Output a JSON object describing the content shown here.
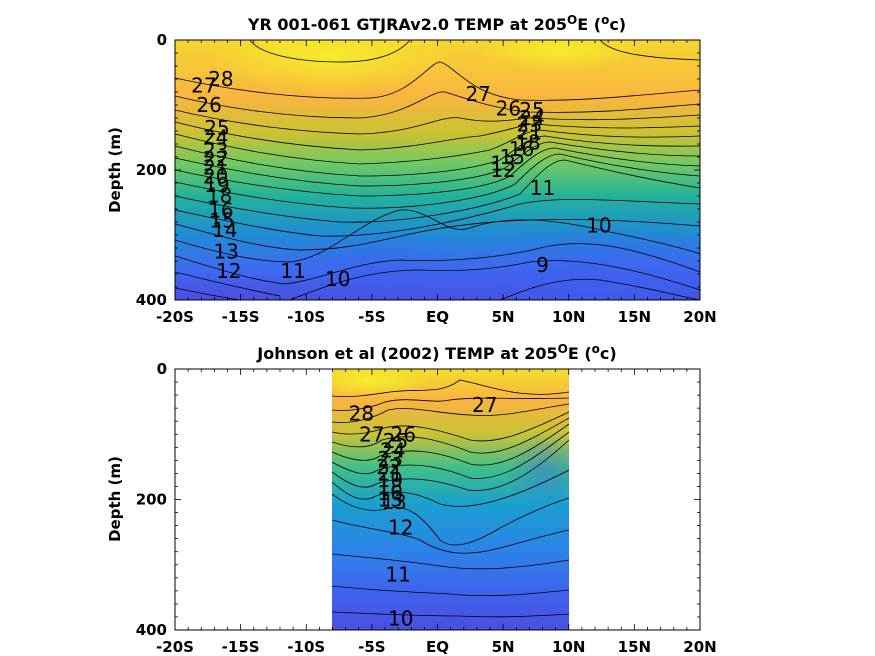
{
  "chart_data": [
    {
      "type": "contour",
      "title_main": "YR 001-061 GTJRAv2.0 TEMP at 205",
      "title_sup": "O",
      "title_end": "E (",
      "title_unit_sup": "o",
      "title_unit": "c)",
      "ylabel": "Depth (m)",
      "xlim": [
        -20,
        20
      ],
      "ylim": [
        0,
        400
      ],
      "y_reversed": true,
      "x_ticks": [
        "-20S",
        "-15S",
        "-10S",
        "-5S",
        "EQ",
        "5N",
        "10N",
        "15N",
        "20N"
      ],
      "y_ticks": [
        "0",
        "200",
        "400"
      ],
      "data_lon_range": [
        -20,
        20
      ],
      "contour_labels": [
        {
          "text": "28",
          "lon": -16.5,
          "depth": 60
        },
        {
          "text": "27",
          "lon": -17.8,
          "depth": 70
        },
        {
          "text": "26",
          "lon": -17.4,
          "depth": 100
        },
        {
          "text": "25",
          "lon": -16.8,
          "depth": 135
        },
        {
          "text": "24",
          "lon": -16.9,
          "depth": 150
        },
        {
          "text": "23",
          "lon": -16.9,
          "depth": 170
        },
        {
          "text": "22",
          "lon": -16.9,
          "depth": 183
        },
        {
          "text": "21",
          "lon": -16.9,
          "depth": 196
        },
        {
          "text": "20",
          "lon": -16.9,
          "depth": 210
        },
        {
          "text": "19",
          "lon": -16.8,
          "depth": 223
        },
        {
          "text": "18",
          "lon": -16.6,
          "depth": 239
        },
        {
          "text": "16",
          "lon": -16.5,
          "depth": 262
        },
        {
          "text": "15",
          "lon": -16.4,
          "depth": 278
        },
        {
          "text": "14",
          "lon": -16.2,
          "depth": 292
        },
        {
          "text": "13",
          "lon": -16.1,
          "depth": 325
        },
        {
          "text": "12",
          "lon": -15.9,
          "depth": 355
        },
        {
          "text": "11",
          "lon": -11.0,
          "depth": 355
        },
        {
          "text": "10",
          "lon": -7.6,
          "depth": 368
        },
        {
          "text": "27",
          "lon": 3.1,
          "depth": 83
        },
        {
          "text": "26",
          "lon": 5.4,
          "depth": 105
        },
        {
          "text": "25",
          "lon": 7.2,
          "depth": 108
        },
        {
          "text": "24",
          "lon": 7.2,
          "depth": 120
        },
        {
          "text": "23",
          "lon": 7.0,
          "depth": 130
        },
        {
          "text": "21",
          "lon": 7.0,
          "depth": 142
        },
        {
          "text": "18",
          "lon": 6.9,
          "depth": 158
        },
        {
          "text": "16",
          "lon": 6.4,
          "depth": 168
        },
        {
          "text": "15",
          "lon": 5.7,
          "depth": 180
        },
        {
          "text": "13",
          "lon": 5.0,
          "depth": 190
        },
        {
          "text": "12",
          "lon": 5.0,
          "depth": 200
        },
        {
          "text": "11",
          "lon": 8.0,
          "depth": 228
        },
        {
          "text": "10",
          "lon": 12.3,
          "depth": 285
        },
        {
          "text": "9",
          "lon": 8.0,
          "depth": 346
        }
      ]
    },
    {
      "type": "contour",
      "title_main": "Johnson et al (2002) TEMP at 205",
      "title_sup": "O",
      "title_end": "E (",
      "title_unit_sup": "o",
      "title_unit": "c)",
      "ylabel": "Depth (m)",
      "xlim": [
        -20,
        20
      ],
      "ylim": [
        0,
        400
      ],
      "y_reversed": true,
      "x_ticks": [
        "-20S",
        "-15S",
        "-10S",
        "-5S",
        "EQ",
        "5N",
        "10N",
        "15N",
        "20N"
      ],
      "y_ticks": [
        "0",
        "200",
        "400"
      ],
      "data_lon_range": [
        -8,
        10
      ],
      "contour_labels": [
        {
          "text": "28",
          "lon": -5.8,
          "depth": 68
        },
        {
          "text": "27",
          "lon": -5.0,
          "depth": 100
        },
        {
          "text": "26",
          "lon": -2.6,
          "depth": 100
        },
        {
          "text": "25",
          "lon": -3.2,
          "depth": 110
        },
        {
          "text": "24",
          "lon": -3.4,
          "depth": 125
        },
        {
          "text": "23",
          "lon": -3.6,
          "depth": 138
        },
        {
          "text": "22",
          "lon": -3.7,
          "depth": 150
        },
        {
          "text": "21",
          "lon": -3.6,
          "depth": 160
        },
        {
          "text": "19",
          "lon": -3.6,
          "depth": 170
        },
        {
          "text": "18",
          "lon": -3.6,
          "depth": 180
        },
        {
          "text": "16",
          "lon": -3.6,
          "depth": 190
        },
        {
          "text": "15",
          "lon": -3.6,
          "depth": 200
        },
        {
          "text": "13",
          "lon": -3.3,
          "depth": 204
        },
        {
          "text": "12",
          "lon": -2.8,
          "depth": 243
        },
        {
          "text": "11",
          "lon": -3.0,
          "depth": 315
        },
        {
          "text": "10",
          "lon": -2.8,
          "depth": 382
        },
        {
          "text": "27",
          "lon": 3.6,
          "depth": 55
        }
      ]
    }
  ]
}
